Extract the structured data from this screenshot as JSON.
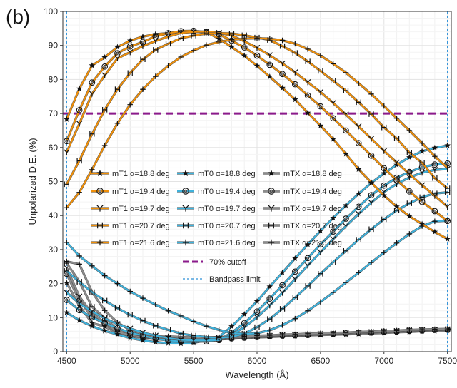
{
  "panel_label": "(b)",
  "chart_data": {
    "type": "line",
    "title": "",
    "xlabel": "Wavelength (Å)",
    "ylabel": "Unpolarized D.E. (%)",
    "xlim": [
      4470,
      7530
    ],
    "ylim": [
      0,
      100
    ],
    "xticks": [
      4500,
      5000,
      5500,
      6000,
      6500,
      7000,
      7500
    ],
    "yticks": [
      0,
      10,
      20,
      30,
      40,
      50,
      60,
      70,
      80,
      90,
      100
    ],
    "grid": true,
    "legend_placement": "center-left",
    "colors": {
      "mT1": "#f0900a",
      "mT0": "#3fb2dc",
      "mTX": "#8c8c8c",
      "cutoff": "#8b1a8b",
      "bandpass": "#2a8fd8"
    },
    "x": [
      4500,
      4600,
      4700,
      4800,
      4900,
      5000,
      5100,
      5200,
      5300,
      5400,
      5500,
      5600,
      5700,
      5800,
      5900,
      6000,
      6100,
      6200,
      6300,
      6400,
      6500,
      6600,
      6700,
      6800,
      6900,
      7000,
      7100,
      7200,
      7300,
      7400,
      7500
    ],
    "series": [
      {
        "name": "mT1 α=18.8 deg",
        "group": "mT1",
        "marker": "star",
        "values": [
          68.3,
          77.3,
          84.1,
          86.5,
          89.5,
          91.4,
          92.6,
          93.3,
          93.6,
          93.9,
          94.0,
          93.9,
          92.0,
          89.5,
          87.0,
          84.0,
          80.8,
          77.5,
          74.1,
          70.2,
          66.4,
          62.5,
          58.1,
          53.6,
          49.7,
          45.9,
          42.6,
          39.8,
          37.5,
          35.2,
          33.1
        ]
      },
      {
        "name": "mT1 α=19.4 deg",
        "group": "mT1",
        "marker": "circle",
        "values": [
          61.9,
          71.0,
          79.1,
          83.8,
          87.7,
          89.7,
          91.0,
          92.7,
          93.6,
          94.2,
          94.3,
          93.9,
          93.3,
          91.4,
          89.4,
          87.0,
          84.3,
          81.6,
          78.6,
          75.3,
          72.1,
          68.6,
          65.0,
          61.3,
          57.6,
          53.9,
          50.4,
          47.1,
          44.0,
          41.3,
          38.4
        ]
      },
      {
        "name": "mT1 α=19.7 deg",
        "group": "mT1",
        "marker": "y",
        "values": [
          58.6,
          67.0,
          75.8,
          81.2,
          86.2,
          88.0,
          89.8,
          91.3,
          92.6,
          93.7,
          94.0,
          94.1,
          93.7,
          92.9,
          91.2,
          89.3,
          87.1,
          84.7,
          82.1,
          79.2,
          76.3,
          73.1,
          69.7,
          66.2,
          62.6,
          59.0,
          55.6,
          52.2,
          48.9,
          45.8,
          42.6
        ]
      },
      {
        "name": "mT1 α=20.7 deg",
        "group": "mT1",
        "marker": "h",
        "values": [
          49.2,
          56.1,
          64.0,
          71.1,
          77.1,
          81.9,
          85.9,
          88.7,
          90.5,
          92.1,
          92.9,
          93.5,
          93.6,
          93.5,
          93.0,
          92.3,
          91.6,
          89.8,
          87.8,
          85.3,
          82.5,
          79.6,
          76.7,
          73.3,
          69.8,
          65.9,
          62.7,
          58.5,
          55.5,
          51.0,
          48.0
        ]
      },
      {
        "name": "mT1 α=21.6 deg",
        "group": "mT1",
        "marker": "plus",
        "values": [
          42.3,
          46.8,
          53.5,
          60.6,
          67.1,
          72.6,
          77.1,
          80.9,
          84.0,
          86.6,
          88.5,
          90.1,
          91.0,
          91.7,
          92.0,
          92.1,
          92.0,
          91.5,
          90.5,
          88.9,
          87.0,
          84.6,
          82.0,
          78.9,
          75.7,
          72.2,
          68.6,
          65.0,
          61.3,
          57.4,
          54.0
        ]
      },
      {
        "name": "mT0 α=18.8 deg",
        "group": "mT0",
        "marker": "star",
        "values": [
          11.5,
          9.2,
          7.5,
          6.1,
          5.1,
          4.0,
          3.3,
          2.8,
          2.5,
          2.4,
          2.6,
          3.3,
          4.3,
          7.4,
          11.0,
          14.8,
          19.1,
          23.2,
          27.4,
          31.5,
          35.5,
          39.3,
          43.0,
          46.4,
          49.6,
          52.4,
          54.9,
          57.1,
          58.9,
          59.9,
          60.6
        ]
      },
      {
        "name": "mT0 α=19.4 deg",
        "group": "mT0",
        "marker": "circle",
        "values": [
          15.2,
          12.2,
          10.1,
          8.4,
          6.9,
          5.6,
          4.7,
          3.8,
          3.3,
          3.0,
          2.9,
          3.0,
          3.4,
          5.6,
          8.4,
          11.8,
          15.6,
          19.5,
          23.5,
          27.5,
          31.5,
          35.3,
          39.1,
          42.6,
          46.0,
          48.8,
          51.1,
          52.8,
          54.2,
          55.0,
          55.3
        ]
      },
      {
        "name": "mT0 α=19.7 deg",
        "group": "mT0",
        "marker": "y",
        "values": [
          17.4,
          14.2,
          11.8,
          9.8,
          8.1,
          6.8,
          5.6,
          4.7,
          4.0,
          3.5,
          3.3,
          3.3,
          3.4,
          4.9,
          7.2,
          10.1,
          13.6,
          17.3,
          21.3,
          25.3,
          29.2,
          33.1,
          36.9,
          40.5,
          43.8,
          46.9,
          49.3,
          51.2,
          52.6,
          53.4,
          53.7
        ]
      },
      {
        "name": "mT0 α=20.7 deg",
        "group": "mT0",
        "marker": "h",
        "values": [
          23.7,
          20.5,
          17.5,
          15.0,
          12.8,
          10.8,
          9.1,
          7.6,
          6.4,
          5.3,
          4.7,
          4.3,
          4.1,
          4.3,
          5.3,
          7.2,
          9.6,
          12.6,
          15.9,
          19.3,
          22.9,
          26.3,
          29.6,
          32.9,
          36.0,
          38.9,
          41.5,
          43.6,
          45.4,
          46.5,
          46.8
        ]
      },
      {
        "name": "mT0 α=21.6 deg",
        "group": "mT0",
        "marker": "plus",
        "values": [
          32.1,
          28.1,
          25.2,
          22.3,
          20.0,
          17.7,
          15.7,
          13.8,
          12.0,
          10.5,
          8.9,
          7.5,
          6.4,
          5.5,
          5.2,
          5.4,
          6.3,
          7.8,
          9.7,
          12.0,
          14.6,
          17.4,
          20.3,
          23.2,
          26.2,
          29.1,
          31.9,
          34.6,
          36.9,
          38.3,
          38.5
        ]
      },
      {
        "name": "mTX α=18.8 deg",
        "group": "mTX",
        "marker": "star",
        "values": [
          20.2,
          13.5,
          8.4,
          7.4,
          5.4,
          4.6,
          4.1,
          3.7,
          3.5,
          3.4,
          3.4,
          3.5,
          3.6,
          3.8,
          4.0,
          4.2,
          4.3,
          4.5,
          4.6,
          4.8,
          4.9,
          5.0,
          5.1,
          5.2,
          5.4,
          5.5,
          5.7,
          5.8,
          6.0,
          6.1,
          6.2
        ]
      },
      {
        "name": "mTX α=19.4 deg",
        "group": "mTX",
        "marker": "circle",
        "values": [
          22.9,
          15.0,
          10.2,
          8.2,
          5.5,
          4.8,
          4.3,
          3.9,
          3.6,
          3.5,
          3.5,
          3.6,
          3.7,
          3.9,
          4.1,
          4.3,
          4.5,
          4.7,
          4.8,
          4.9,
          5.1,
          5.2,
          5.4,
          5.5,
          5.6,
          5.8,
          5.9,
          6.1,
          6.2,
          6.4,
          6.5
        ]
      },
      {
        "name": "mTX α=19.7 deg",
        "group": "mTX",
        "marker": "y",
        "values": [
          24.6,
          16.2,
          11.2,
          8.6,
          5.7,
          5.0,
          4.4,
          4.0,
          3.7,
          3.6,
          3.6,
          3.7,
          3.8,
          4.0,
          4.2,
          4.4,
          4.6,
          4.8,
          4.9,
          5.0,
          5.2,
          5.3,
          5.4,
          5.5,
          5.7,
          5.8,
          6.0,
          6.1,
          6.3,
          6.4,
          6.5
        ]
      },
      {
        "name": "mTX α=20.7 deg",
        "group": "mTX",
        "marker": "h",
        "values": [
          26.0,
          20.6,
          13.2,
          9.9,
          6.5,
          5.4,
          4.7,
          4.3,
          4.0,
          3.9,
          3.8,
          3.9,
          4.0,
          4.1,
          4.3,
          4.5,
          4.7,
          4.9,
          5.0,
          5.1,
          5.3,
          5.4,
          5.5,
          5.7,
          5.8,
          6.0,
          6.1,
          6.3,
          6.4,
          6.5,
          6.6
        ]
      },
      {
        "name": "mTX α=21.6 deg",
        "group": "mTX",
        "marker": "plus",
        "values": [
          26.5,
          25.7,
          17.5,
          12.1,
          8.6,
          6.3,
          5.3,
          4.8,
          4.5,
          4.3,
          4.2,
          4.2,
          4.3,
          4.4,
          4.5,
          4.7,
          4.8,
          5.0,
          5.1,
          5.3,
          5.4,
          5.5,
          5.6,
          5.8,
          5.9,
          6.1,
          6.2,
          6.4,
          6.5,
          6.6,
          6.7
        ]
      }
    ],
    "reference_lines": [
      {
        "name": "70% cutoff",
        "orientation": "horizontal",
        "value": 70
      },
      {
        "name": "Bandpass limit",
        "orientation": "vertical",
        "value": 4500
      },
      {
        "name": "Bandpass limit",
        "orientation": "vertical",
        "value": 7500
      }
    ],
    "legend": {
      "entries": [
        "mT1 α=18.8 deg",
        "mT0 α=18.8 deg",
        "mTX α=18.8 deg",
        "mT1 α=19.4 deg",
        "mT0 α=19.4 deg",
        "mTX α=19.4 deg",
        "mT1 α=19.7 deg",
        "mT0 α=19.7 deg",
        "mTX α=19.7 deg",
        "mT1 α=20.7 deg",
        "mT0 α=20.7 deg",
        "mTX α=20.7 deg",
        "mT1 α=21.6 deg",
        "mT0 α=21.6 deg",
        "mTX α=21.6 deg",
        "70% cutoff",
        "Bandpass limit"
      ]
    }
  }
}
